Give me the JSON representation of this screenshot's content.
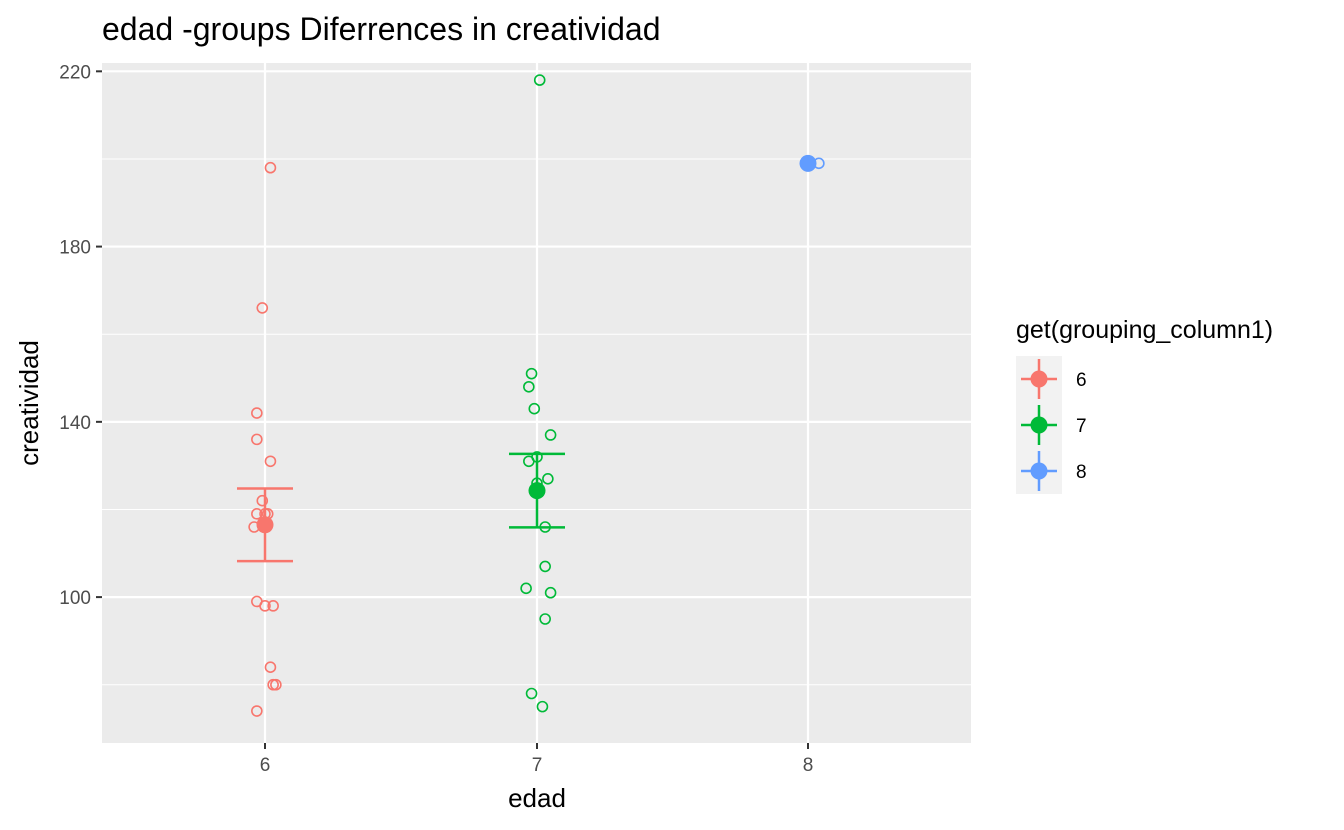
{
  "chart_data": {
    "type": "scatter",
    "title": "edad -groups Diferrences in  creatividad",
    "xlabel": "edad",
    "ylabel": "creatividad",
    "x_categories": [
      "6",
      "7",
      "8"
    ],
    "ylim": [
      66.7,
      221.9
    ],
    "y_ticks": [
      100,
      140,
      180,
      220
    ],
    "grid": true,
    "legend": {
      "title": "get(grouping_column1)",
      "placement": "right",
      "entries": [
        "6",
        "7",
        "8"
      ]
    },
    "series": [
      {
        "name": "6",
        "color": "#F8766D",
        "x": 6,
        "mean": 116.5,
        "ci": [
          108.2,
          124.8
        ],
        "points": [
          {
            "x": 6.02,
            "y": 198
          },
          {
            "x": 5.99,
            "y": 166
          },
          {
            "x": 5.97,
            "y": 142
          },
          {
            "x": 5.97,
            "y": 136
          },
          {
            "x": 6.02,
            "y": 131
          },
          {
            "x": 5.99,
            "y": 122
          },
          {
            "x": 5.97,
            "y": 119
          },
          {
            "x": 6.0,
            "y": 119
          },
          {
            "x": 6.01,
            "y": 119
          },
          {
            "x": 5.96,
            "y": 116
          },
          {
            "x": 5.97,
            "y": 99
          },
          {
            "x": 6.0,
            "y": 98
          },
          {
            "x": 6.03,
            "y": 98
          },
          {
            "x": 6.02,
            "y": 84
          },
          {
            "x": 6.04,
            "y": 80
          },
          {
            "x": 6.03,
            "y": 80
          },
          {
            "x": 5.97,
            "y": 74
          }
        ]
      },
      {
        "name": "7",
        "color": "#00BA38",
        "x": 7,
        "mean": 124.3,
        "ci": [
          115.9,
          132.7
        ],
        "points": [
          {
            "x": 7.01,
            "y": 218
          },
          {
            "x": 6.98,
            "y": 151
          },
          {
            "x": 6.97,
            "y": 148
          },
          {
            "x": 6.99,
            "y": 143
          },
          {
            "x": 7.05,
            "y": 137
          },
          {
            "x": 7.0,
            "y": 132
          },
          {
            "x": 6.97,
            "y": 131
          },
          {
            "x": 7.04,
            "y": 127
          },
          {
            "x": 7.0,
            "y": 126
          },
          {
            "x": 7.03,
            "y": 116
          },
          {
            "x": 7.03,
            "y": 107
          },
          {
            "x": 6.96,
            "y": 102
          },
          {
            "x": 7.05,
            "y": 101
          },
          {
            "x": 7.03,
            "y": 95
          },
          {
            "x": 6.98,
            "y": 78
          },
          {
            "x": 7.02,
            "y": 75
          }
        ]
      },
      {
        "name": "8",
        "color": "#619CFF",
        "x": 8,
        "mean": 199,
        "ci": [
          199,
          199
        ],
        "points": [
          {
            "x": 8.04,
            "y": 199
          }
        ]
      }
    ]
  }
}
